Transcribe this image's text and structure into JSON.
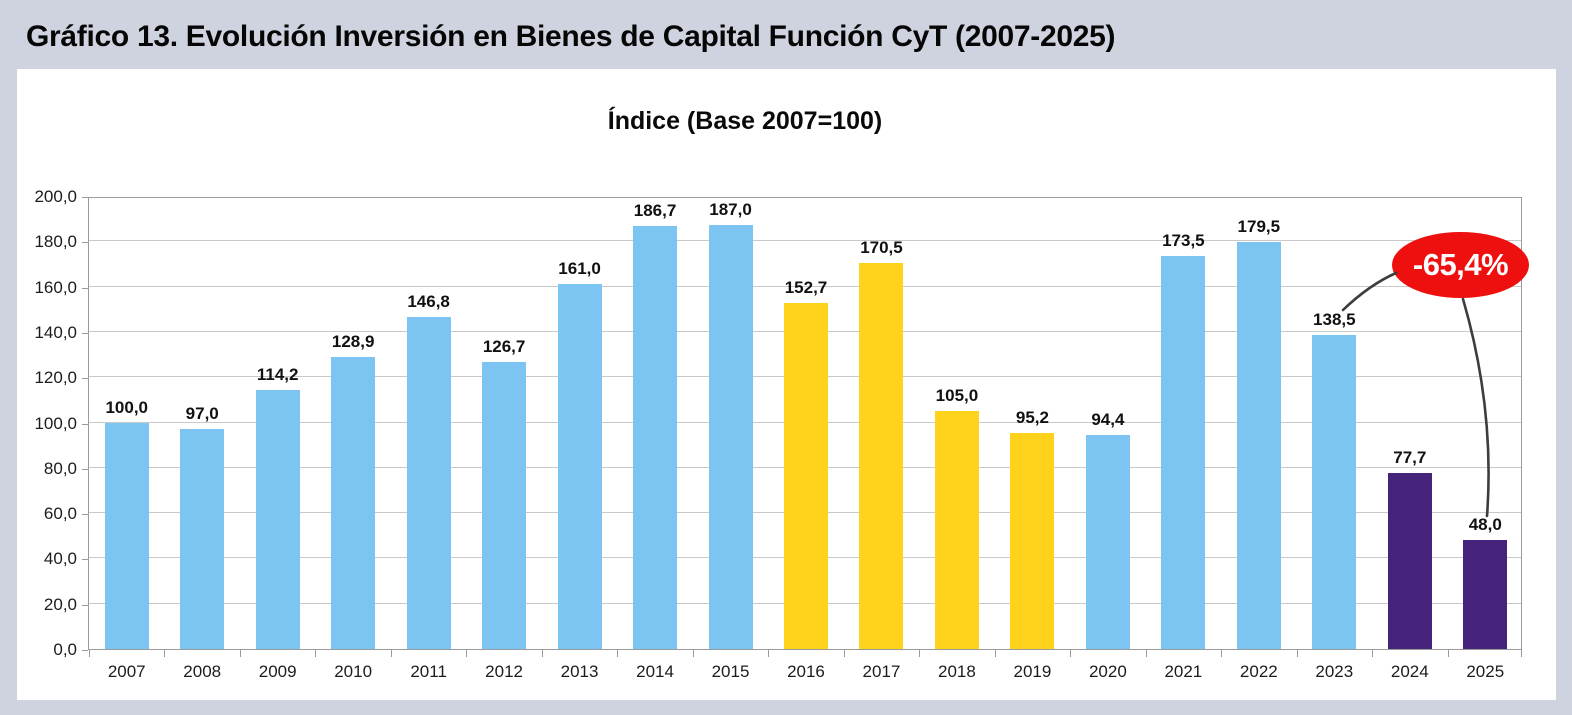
{
  "page": {
    "title": "Gráfico 13. Evolución Inversión en Bienes de Capital Función CyT (2007-2025)"
  },
  "chart_data": {
    "type": "bar",
    "title": "Índice (Base 2007=100)",
    "categories": [
      "2007",
      "2008",
      "2009",
      "2010",
      "2011",
      "2012",
      "2013",
      "2014",
      "2015",
      "2016",
      "2017",
      "2018",
      "2019",
      "2020",
      "2021",
      "2022",
      "2023",
      "2024",
      "2025"
    ],
    "values": [
      100.0,
      97.0,
      114.2,
      128.9,
      146.8,
      126.7,
      161.0,
      186.7,
      187.0,
      152.7,
      170.5,
      105.0,
      95.2,
      94.4,
      173.5,
      179.5,
      138.5,
      77.7,
      48.0
    ],
    "value_labels": [
      "100,0",
      "97,0",
      "114,2",
      "128,9",
      "146,8",
      "126,7",
      "161,0",
      "186,7",
      "187,0",
      "152,7",
      "170,5",
      "105,0",
      "95,2",
      "94,4",
      "173,5",
      "179,5",
      "138,5",
      "77,7",
      "48,0"
    ],
    "bar_colors": [
      "#7cc4f2",
      "#7cc4f2",
      "#7cc4f2",
      "#7cc4f2",
      "#7cc4f2",
      "#7cc4f2",
      "#7cc4f2",
      "#7cc4f2",
      "#7cc4f2",
      "#ffd21c",
      "#ffd21c",
      "#ffd21c",
      "#ffd21c",
      "#7cc4f2",
      "#7cc4f2",
      "#7cc4f2",
      "#7cc4f2",
      "#45237b",
      "#45237b"
    ],
    "color_meaning": {
      "light_blue": "#7cc4f2",
      "yellow": "#ffd21c",
      "dark_purple": "#45237b"
    },
    "xlabel": "",
    "ylabel": "",
    "ylim": [
      0,
      200
    ],
    "ytick_step": 20,
    "ytick_labels": [
      "0,0",
      "20,0",
      "40,0",
      "60,0",
      "80,0",
      "100,0",
      "120,0",
      "140,0",
      "160,0",
      "180,0",
      "200,0"
    ],
    "grid": true,
    "legend": "none",
    "annotation": {
      "label": "-65,4%",
      "shape": "ellipse",
      "fill": "#ee0f0f",
      "text_color": "#ffffff",
      "points_to": [
        "2023",
        "2025"
      ]
    }
  }
}
